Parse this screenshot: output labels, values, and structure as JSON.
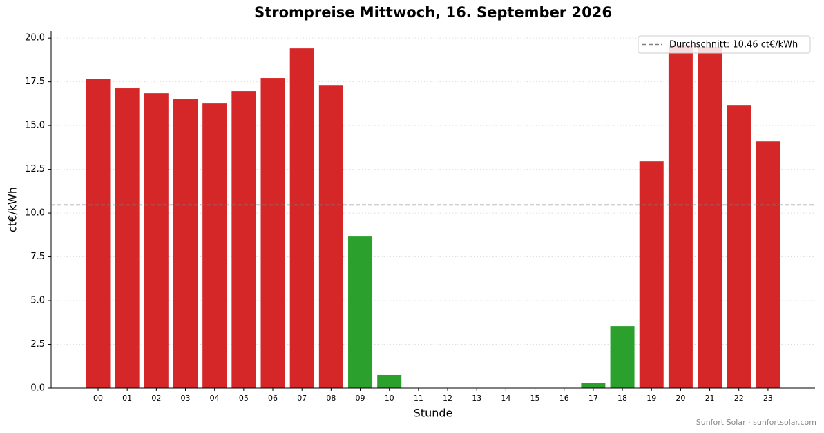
{
  "chart_data": {
    "type": "bar",
    "title": "Strompreise Mittwoch, 16. September 2026",
    "x_label": "Stunde",
    "y_label": "ct€/kWh",
    "footer": "Sunfort Solar · sunfortsolar.com",
    "categories": [
      "00",
      "01",
      "02",
      "03",
      "04",
      "05",
      "06",
      "07",
      "08",
      "09",
      "10",
      "11",
      "12",
      "13",
      "14",
      "15",
      "16",
      "17",
      "18",
      "19",
      "20",
      "21",
      "22",
      "23"
    ],
    "values": [
      17.68,
      17.13,
      16.85,
      16.5,
      16.26,
      16.97,
      17.72,
      19.41,
      17.28,
      8.66,
      0.75,
      0,
      0,
      0,
      0,
      0,
      0,
      0.31,
      3.54,
      12.95,
      19.6,
      19.5,
      16.14,
      14.09
    ],
    "colors": [
      "#d62728",
      "#d62728",
      "#d62728",
      "#d62728",
      "#d62728",
      "#d62728",
      "#d62728",
      "#d62728",
      "#d62728",
      "#2ca02c",
      "#2ca02c",
      "#2ca02c",
      "#2ca02c",
      "#2ca02c",
      "#2ca02c",
      "#2ca02c",
      "#2ca02c",
      "#2ca02c",
      "#2ca02c",
      "#d62728",
      "#d62728",
      "#d62728",
      "#d62728",
      "#d62728"
    ],
    "average": {
      "value": 10.46,
      "label": "Durchschnitt: 10.46 ct€/kWh"
    },
    "average_color": "#808080",
    "ylim": [
      0,
      20.4
    ],
    "yticks": [
      {
        "value": 0,
        "label": "0.0"
      },
      2.5,
      {
        "value": 5,
        "label": "5.0"
      },
      7.5,
      {
        "value": 10,
        "label": "10.0"
      },
      12.5,
      {
        "value": 15,
        "label": "15.0"
      },
      17.5,
      {
        "value": 20,
        "label": "20.0"
      }
    ],
    "grid": true,
    "legend": "upper right"
  }
}
